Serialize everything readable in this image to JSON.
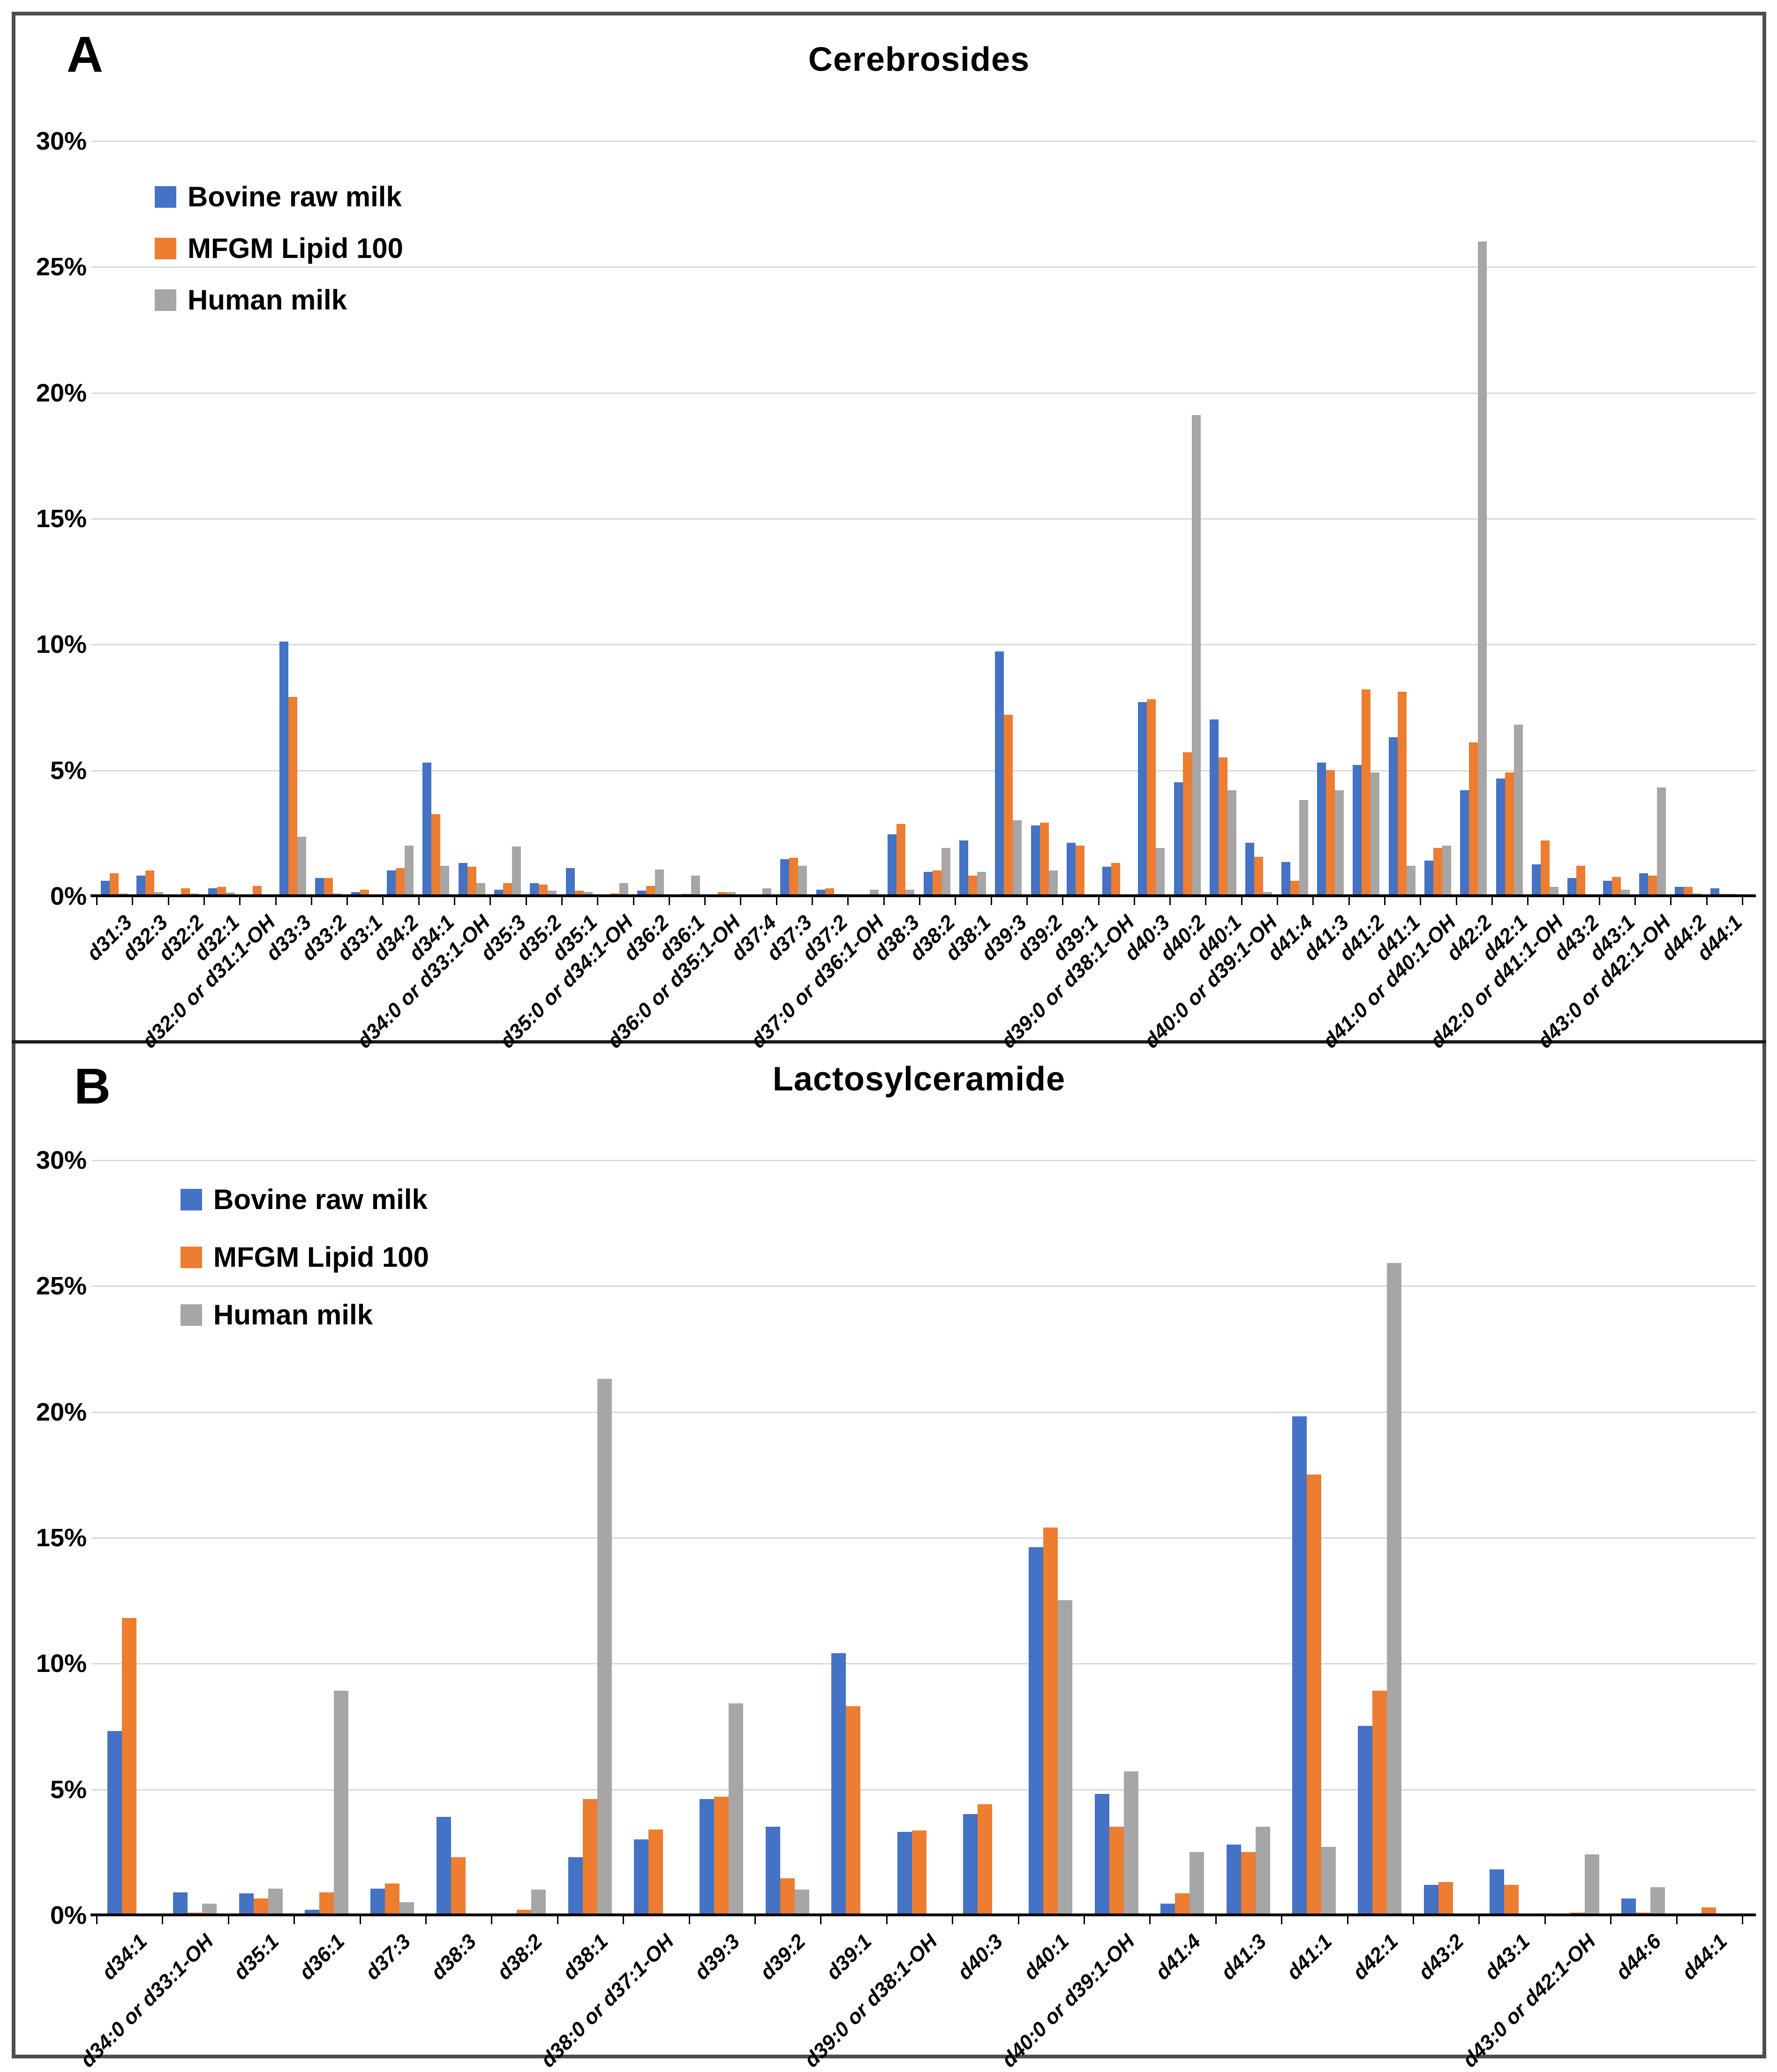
{
  "figure": {
    "panels": [
      {
        "letter": "A",
        "title": "Cerebrosides"
      },
      {
        "letter": "B",
        "title": "Lactosylceramide"
      }
    ],
    "y_tick_labels": [
      "30%",
      "25%",
      "20%",
      "15%",
      "10%",
      "5%",
      "0%"
    ]
  },
  "colors": {
    "bovine": "#4472C4",
    "mfgm": "#ED7D31",
    "human": "#A6A6A6",
    "gridline": "#D9D9D9",
    "axis": "#000000"
  },
  "chart_data": [
    {
      "type": "bar",
      "panel": "A",
      "title": "Cerebrosides",
      "ylabel": "",
      "xlabel": "",
      "ylim": [
        0,
        30
      ],
      "ytick_step": 5,
      "grid": true,
      "legend_position": "top-left",
      "categories": [
        "d31:3",
        "d32:3",
        "d32:2",
        "d32:1",
        "d32:0 or d31:1-OH",
        "d33:3",
        "d33:2",
        "d33:1",
        "d34:2",
        "d34:1",
        "d34:0 or d33:1-OH",
        "d35:3",
        "d35:2",
        "d35:1",
        "d35:0 or d34:1-OH",
        "d36:2",
        "d36:1",
        "d36:0 or d35:1-OH",
        "d37:4",
        "d37:3",
        "d37:2",
        "d37:0 or d36:1-OH",
        "d38:3",
        "d38:2",
        "d38:1",
        "d39:3",
        "d39:2",
        "d39:1",
        "d39:0 or d38:1-OH",
        "d40:3",
        "d40:2",
        "d40:1",
        "d40:0 or d39:1-OH",
        "d41:4",
        "d41:3",
        "d41:2",
        "d41:1",
        "d41:0 or d40:1-OH",
        "d42:2",
        "d42:1",
        "d42:0 or d41:1-OH",
        "d43:2",
        "d43:1",
        "d43:0 or d42:1-OH",
        "d44:2",
        "d44:1"
      ],
      "series": [
        {
          "name": "Bovine raw milk",
          "color": "#4472C4",
          "values": [
            0.6,
            0.8,
            0.05,
            0.3,
            0,
            10.1,
            0.7,
            0.15,
            1.0,
            5.3,
            1.3,
            0.25,
            0.5,
            1.1,
            0,
            0.2,
            0,
            0,
            0,
            1.45,
            0.25,
            0,
            2.45,
            0.95,
            2.2,
            9.7,
            2.8,
            2.1,
            1.15,
            7.7,
            4.5,
            7.0,
            2.1,
            1.35,
            5.3,
            5.2,
            6.3,
            1.4,
            4.2,
            4.65,
            1.25,
            0.7,
            0.6,
            0.9,
            0.35,
            0.3
          ]
        },
        {
          "name": "MFGM Lipid 100",
          "color": "#ED7D31",
          "values": [
            0.9,
            1.0,
            0.3,
            0.35,
            0.4,
            7.9,
            0.7,
            0.25,
            1.1,
            3.25,
            1.15,
            0.5,
            0.45,
            0.2,
            0.1,
            0.4,
            0.07,
            0.15,
            0.05,
            1.5,
            0.3,
            0.05,
            2.85,
            1.0,
            0.8,
            7.2,
            2.9,
            2.0,
            1.3,
            7.8,
            5.7,
            5.5,
            1.55,
            0.6,
            5.0,
            8.2,
            8.1,
            1.9,
            6.1,
            4.9,
            2.2,
            1.2,
            0.75,
            0.8,
            0.35,
            0.07
          ]
        },
        {
          "name": "Human milk",
          "color": "#A6A6A6",
          "values": [
            0.1,
            0.15,
            0.1,
            0.13,
            0,
            2.35,
            0.1,
            0,
            2.0,
            1.2,
            0.5,
            1.95,
            0.2,
            0.15,
            0.5,
            1.05,
            0.8,
            0.15,
            0.3,
            1.2,
            0.07,
            0.25,
            0.25,
            1.9,
            0.95,
            3.0,
            1.0,
            0.05,
            0,
            1.9,
            19.1,
            4.2,
            0.15,
            3.8,
            4.2,
            4.9,
            1.2,
            2.0,
            26.0,
            6.8,
            0.35,
            0.05,
            0.25,
            4.3,
            0.1,
            0.07
          ]
        }
      ]
    },
    {
      "type": "bar",
      "panel": "B",
      "title": "Lactosylceramide",
      "ylabel": "",
      "xlabel": "",
      "ylim": [
        0,
        30
      ],
      "ytick_step": 5,
      "grid": true,
      "legend_position": "top-left",
      "categories": [
        "d34:1",
        "d34:0 or d33:1-OH",
        "d35:1",
        "d36:1",
        "d37:3",
        "d38:3",
        "d38:2",
        "d38:1",
        "d38:0 or d37:1-OH",
        "d39:3",
        "d39:2",
        "d39:1",
        "d39:0 or d38:1-OH",
        "d40:3",
        "d40:1",
        "d40:0 or d39:1-OH",
        "d41:4",
        "d41:3",
        "d41:1",
        "d42:1",
        "d43:2",
        "d43:1",
        "d43:0 or d42:1-OH",
        "d44:6",
        "d44:1"
      ],
      "series": [
        {
          "name": "Bovine raw milk",
          "color": "#4472C4",
          "values": [
            7.3,
            0.9,
            0.85,
            0.2,
            1.05,
            3.9,
            0,
            2.3,
            3.0,
            4.6,
            3.5,
            10.4,
            3.3,
            4.0,
            14.6,
            4.8,
            0.45,
            2.8,
            19.8,
            7.5,
            1.2,
            1.8,
            0,
            0.65,
            0
          ]
        },
        {
          "name": "MFGM Lipid 100",
          "color": "#ED7D31",
          "values": [
            11.8,
            0.1,
            0.65,
            0.9,
            1.25,
            2.3,
            0.2,
            4.6,
            3.4,
            4.7,
            1.45,
            8.3,
            3.35,
            4.4,
            15.4,
            3.5,
            0.85,
            2.5,
            17.5,
            8.9,
            1.3,
            1.2,
            0.1,
            0.1,
            0.3
          ]
        },
        {
          "name": "Human milk",
          "color": "#A6A6A6",
          "values": [
            0,
            0.45,
            1.05,
            8.9,
            0.5,
            0,
            1.0,
            21.3,
            0,
            8.4,
            1.0,
            0,
            0,
            0,
            12.5,
            5.7,
            2.5,
            3.5,
            2.7,
            25.9,
            0,
            0,
            2.4,
            1.1,
            0.05
          ]
        }
      ]
    }
  ]
}
